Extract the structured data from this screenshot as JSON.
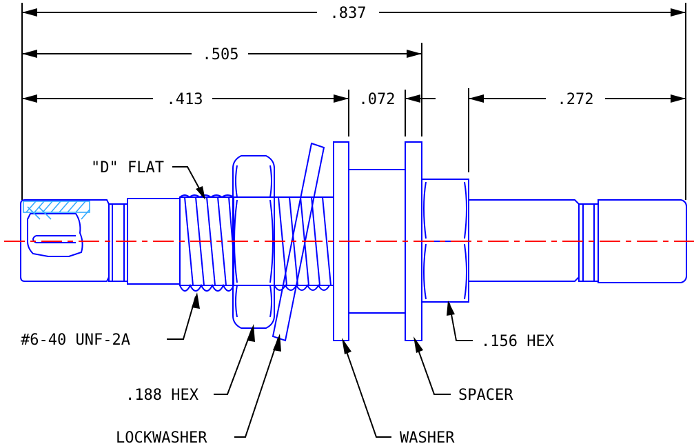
{
  "dimensions": {
    "overall": ".837",
    "to_washer_outer": ".505",
    "to_washer_inner": ".413",
    "between_washers": ".072",
    "rear_length": ".272"
  },
  "labels": {
    "d_flat": "\"D\" FLAT",
    "thread": "#6-40 UNF-2A",
    "hex_188": ".188 HEX",
    "lockwasher": "LOCKWASHER",
    "washer": "WASHER",
    "spacer": "SPACER",
    "hex_156": ".156 HEX"
  },
  "colors": {
    "part_outline": "#0000ff",
    "centerline": "#ff0000",
    "dimension": "#000000",
    "hatch": "#33aaff"
  }
}
